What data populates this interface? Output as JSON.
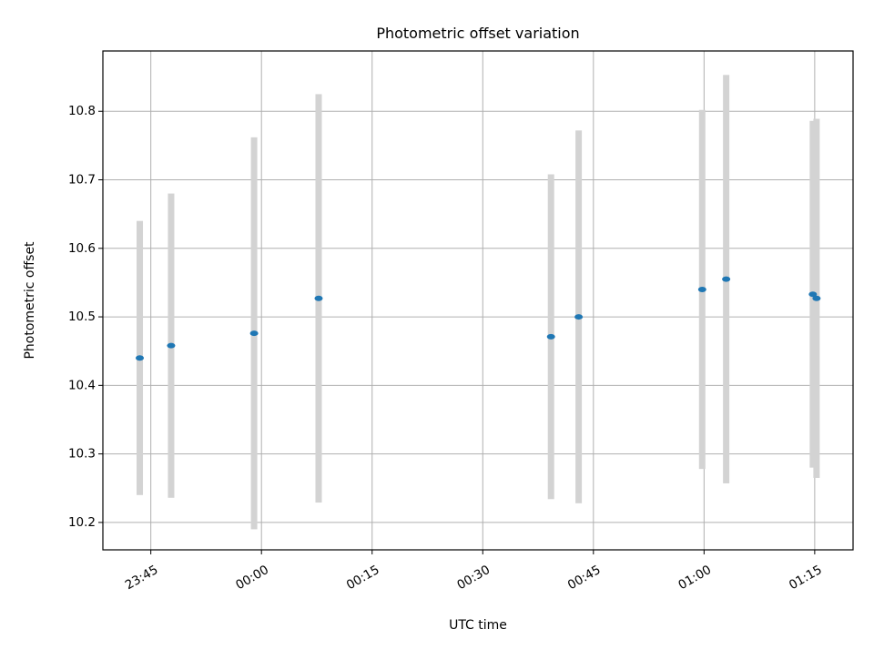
{
  "chart_data": {
    "type": "scatter",
    "title": "Photometric offset variation",
    "xlabel": "UTC time",
    "ylabel": "Photometric offset",
    "x_ticks": [
      "23:45",
      "00:00",
      "00:15",
      "00:30",
      "00:45",
      "01:00",
      "01:15"
    ],
    "x_tick_minutes": [
      -15,
      0,
      15,
      30,
      45,
      60,
      75
    ],
    "xlim_minutes": [
      -21.5,
      80.2
    ],
    "y_ticks": [
      10.2,
      10.3,
      10.4,
      10.5,
      10.6,
      10.7,
      10.8
    ],
    "ylim": [
      10.16,
      10.888
    ],
    "grid": true,
    "series": [
      {
        "marker_color": "#1f77b4",
        "errorbar_color": "#d3d3d3",
        "points": [
          {
            "time": "23:43:30",
            "y": 10.44,
            "yerr": 0.2
          },
          {
            "time": "23:47:45",
            "y": 10.458,
            "yerr": 0.222
          },
          {
            "time": "23:59:00",
            "y": 10.476,
            "yerr": 0.286
          },
          {
            "time": "00:07:45",
            "y": 10.527,
            "yerr": 0.298
          },
          {
            "time": "00:39:15",
            "y": 10.471,
            "yerr": 0.237
          },
          {
            "time": "00:43:00",
            "y": 10.5,
            "yerr": 0.272
          },
          {
            "time": "00:59:45",
            "y": 10.54,
            "yerr": 0.262
          },
          {
            "time": "01:03:00",
            "y": 10.555,
            "yerr": 0.298
          },
          {
            "time": "01:14:45",
            "y": 10.533,
            "yerr": 0.253
          },
          {
            "time": "01:15:15",
            "y": 10.527,
            "yerr": 0.262
          }
        ]
      }
    ]
  }
}
